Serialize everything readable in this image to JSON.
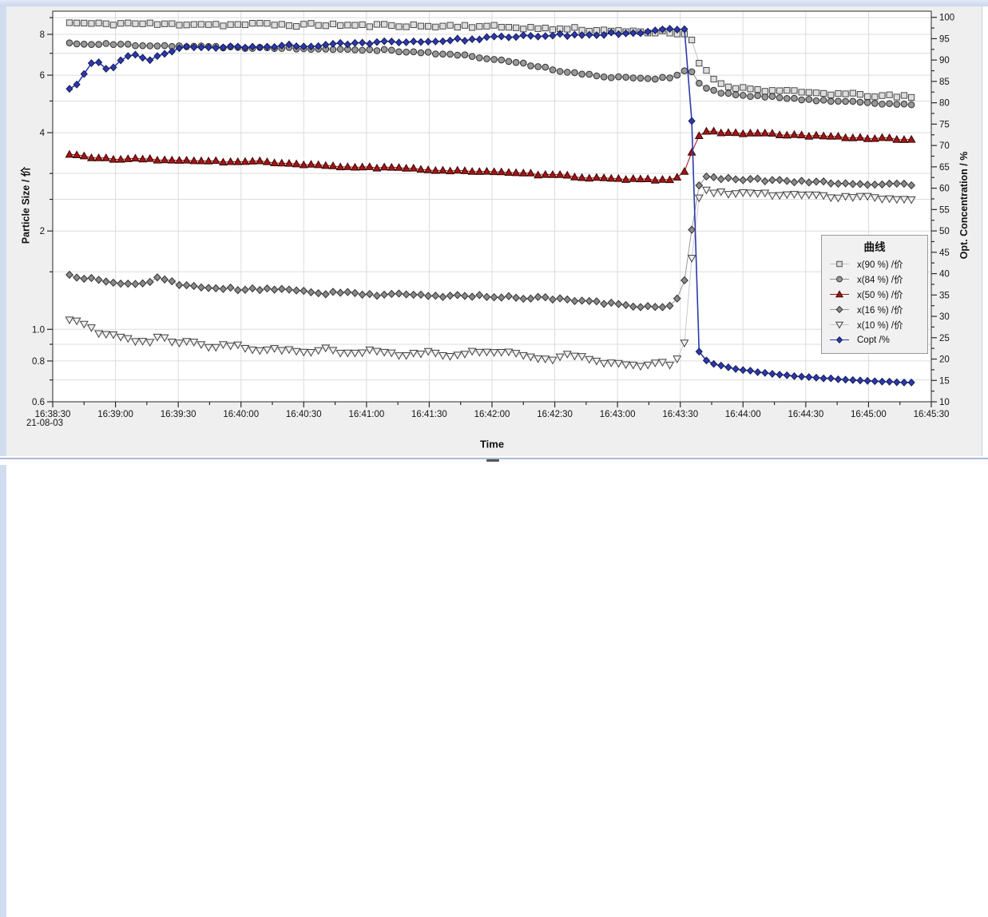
{
  "window": {
    "background": "#d2dcf0",
    "panel_background": "#efefef",
    "divider_color": "#a9b9da"
  },
  "chart_data": {
    "type": "line",
    "title": "",
    "xlabel": "Time",
    "ylabel_left": "Particle Size / 价",
    "ylabel_right": "Opt. Concentration / %",
    "date_label": "21-08-03",
    "grid": {
      "on": true,
      "color": "#dcdcdc"
    },
    "x_axis": {
      "range_s": [
        0,
        420
      ],
      "major_interval_s": 30,
      "minor_interval_s": 15,
      "tick_labels": [
        "16:38:30",
        "16:39:00",
        "16:39:30",
        "16:40:00",
        "16:40:30",
        "16:41:00",
        "16:41:30",
        "16:42:00",
        "16:42:30",
        "16:43:00",
        "16:43:30",
        "16:44:00",
        "16:44:30",
        "16:45:00",
        "16:45:30"
      ]
    },
    "left_axis": {
      "scale": "log",
      "min": 0.6,
      "max": 9.42,
      "ticks": [
        0.6,
        0.7,
        0.8,
        0.9,
        1,
        1.5,
        2,
        2.5,
        3,
        4,
        5,
        6,
        7,
        8,
        9
      ],
      "labeled": [
        [
          0.6,
          "0.6"
        ],
        [
          0.8,
          "0.8"
        ],
        [
          1,
          "1.0"
        ],
        [
          2,
          "2"
        ],
        [
          4,
          "4"
        ],
        [
          6,
          "6"
        ],
        [
          8,
          "8"
        ]
      ]
    },
    "right_axis": {
      "scale": "linear",
      "min": 10,
      "max": 100,
      "major_step": 5,
      "minor_step": 2.5
    },
    "legend": {
      "title": "曲线",
      "position": "right-middle",
      "entries": [
        "x(90 %) /价",
        "x(84 %) /价",
        "x(50 %) /价",
        "x(16 %) /价",
        "x(10 %) /价",
        "Copt /%"
      ]
    },
    "sample_interval_s": 3.5,
    "t_range": [
      8,
      412
    ],
    "series": [
      {
        "name": "x(90 %) /价",
        "axis": "left",
        "marker": "square",
        "fill": "#dedede",
        "stroke": "#4a4a4a",
        "line": "#bfbfbf",
        "line_width": 1,
        "jitter": 0.011,
        "seed": 11,
        "anchors": [
          [
            8,
            8.68
          ],
          [
            22,
            8.6
          ],
          [
            36,
            8.65
          ],
          [
            52,
            8.58
          ],
          [
            68,
            8.62
          ],
          [
            84,
            8.55
          ],
          [
            100,
            8.6
          ],
          [
            116,
            8.54
          ],
          [
            132,
            8.57
          ],
          [
            148,
            8.5
          ],
          [
            164,
            8.54
          ],
          [
            180,
            8.46
          ],
          [
            196,
            8.5
          ],
          [
            210,
            8.44
          ],
          [
            224,
            8.4
          ],
          [
            238,
            8.3
          ],
          [
            250,
            8.34
          ],
          [
            260,
            8.2
          ],
          [
            269,
            8.27
          ],
          [
            277,
            8.12
          ],
          [
            285,
            8.05
          ],
          [
            291,
            8.13
          ],
          [
            297,
            8.02
          ],
          [
            303,
            8.06
          ],
          [
            305,
            7.9
          ],
          [
            307,
            7.05
          ],
          [
            309,
            6.6
          ],
          [
            312,
            6.2
          ],
          [
            315,
            5.92
          ],
          [
            319,
            5.68
          ],
          [
            324,
            5.54
          ],
          [
            332,
            5.45
          ],
          [
            344,
            5.38
          ],
          [
            358,
            5.31
          ],
          [
            374,
            5.26
          ],
          [
            390,
            5.2
          ],
          [
            403,
            5.16
          ],
          [
            412,
            5.14
          ]
        ]
      },
      {
        "name": "x(84 %) /价",
        "axis": "left",
        "marker": "circle",
        "fill": "#999999",
        "stroke": "#303030",
        "line": "#8f8f8f",
        "line_width": 1,
        "jitter": 0.007,
        "seed": 22,
        "anchors": [
          [
            8,
            7.52
          ],
          [
            24,
            7.46
          ],
          [
            42,
            7.43
          ],
          [
            60,
            7.37
          ],
          [
            78,
            7.32
          ],
          [
            96,
            7.29
          ],
          [
            114,
            7.26
          ],
          [
            132,
            7.23
          ],
          [
            150,
            7.2
          ],
          [
            163,
            7.14
          ],
          [
            176,
            7.05
          ],
          [
            189,
            6.95
          ],
          [
            201,
            6.85
          ],
          [
            213,
            6.68
          ],
          [
            225,
            6.5
          ],
          [
            237,
            6.3
          ],
          [
            248,
            6.1
          ],
          [
            258,
            5.99
          ],
          [
            268,
            5.93
          ],
          [
            279,
            5.89
          ],
          [
            289,
            5.86
          ],
          [
            296,
            5.92
          ],
          [
            300,
            6.05
          ],
          [
            303,
            6.3
          ],
          [
            305,
            6.18
          ],
          [
            307,
            5.88
          ],
          [
            310,
            5.58
          ],
          [
            314,
            5.4
          ],
          [
            320,
            5.29
          ],
          [
            330,
            5.2
          ],
          [
            344,
            5.13
          ],
          [
            358,
            5.07
          ],
          [
            374,
            5.0
          ],
          [
            392,
            4.94
          ],
          [
            404,
            4.9
          ],
          [
            412,
            4.87
          ]
        ]
      },
      {
        "name": "x(50 %) /价",
        "axis": "left",
        "marker": "triangle-up",
        "fill": "#a31515",
        "stroke": "#3c0606",
        "line": "#9b1515",
        "line_width": 1,
        "jitter": 0.006,
        "seed": 33,
        "anchors": [
          [
            8,
            3.43
          ],
          [
            20,
            3.36
          ],
          [
            32,
            3.31
          ],
          [
            44,
            3.33
          ],
          [
            56,
            3.28
          ],
          [
            70,
            3.3
          ],
          [
            84,
            3.25
          ],
          [
            98,
            3.27
          ],
          [
            112,
            3.21
          ],
          [
            126,
            3.18
          ],
          [
            140,
            3.15
          ],
          [
            154,
            3.13
          ],
          [
            168,
            3.11
          ],
          [
            182,
            3.08
          ],
          [
            196,
            3.06
          ],
          [
            210,
            3.03
          ],
          [
            224,
            3.0
          ],
          [
            238,
            2.97
          ],
          [
            250,
            2.94
          ],
          [
            262,
            2.9
          ],
          [
            274,
            2.88
          ],
          [
            288,
            2.87
          ],
          [
            297,
            2.89
          ],
          [
            301,
            2.97
          ],
          [
            303,
            3.12
          ],
          [
            305,
            3.4
          ],
          [
            307,
            3.68
          ],
          [
            309,
            3.92
          ],
          [
            312,
            4.04
          ],
          [
            318,
            4.02
          ],
          [
            330,
            3.99
          ],
          [
            344,
            3.96
          ],
          [
            358,
            3.92
          ],
          [
            373,
            3.89
          ],
          [
            388,
            3.86
          ],
          [
            402,
            3.83
          ],
          [
            412,
            3.82
          ]
        ]
      },
      {
        "name": "x(16 %) /价",
        "axis": "left",
        "marker": "diamond",
        "fill": "#8a8a8a",
        "stroke": "#303030",
        "line": "#9a9a9a",
        "line_width": 1,
        "jitter": 0.009,
        "seed": 44,
        "anchors": [
          [
            8,
            1.46
          ],
          [
            18,
            1.43
          ],
          [
            28,
            1.39
          ],
          [
            40,
            1.37
          ],
          [
            50,
            1.43
          ],
          [
            60,
            1.38
          ],
          [
            72,
            1.34
          ],
          [
            86,
            1.33
          ],
          [
            100,
            1.32
          ],
          [
            114,
            1.33
          ],
          [
            128,
            1.29
          ],
          [
            142,
            1.3
          ],
          [
            156,
            1.27
          ],
          [
            170,
            1.28
          ],
          [
            184,
            1.26
          ],
          [
            198,
            1.27
          ],
          [
            212,
            1.26
          ],
          [
            226,
            1.25
          ],
          [
            240,
            1.24
          ],
          [
            254,
            1.22
          ],
          [
            266,
            1.2
          ],
          [
            278,
            1.18
          ],
          [
            288,
            1.17
          ],
          [
            296,
            1.19
          ],
          [
            300,
            1.26
          ],
          [
            303,
            1.5
          ],
          [
            305,
            1.9
          ],
          [
            307,
            2.4
          ],
          [
            309,
            2.75
          ],
          [
            312,
            2.92
          ],
          [
            318,
            2.9
          ],
          [
            332,
            2.88
          ],
          [
            348,
            2.85
          ],
          [
            364,
            2.83
          ],
          [
            380,
            2.8
          ],
          [
            396,
            2.78
          ],
          [
            412,
            2.77
          ]
        ]
      },
      {
        "name": "x(10 %) /价",
        "axis": "left",
        "marker": "triangle-down",
        "fill": "#f2f2f2",
        "stroke": "#404040",
        "line": "#c9c9c9",
        "line_width": 1,
        "jitter": 0.011,
        "seed": 55,
        "anchors": [
          [
            8,
            1.07
          ],
          [
            14,
            1.04
          ],
          [
            22,
            0.98
          ],
          [
            30,
            0.96
          ],
          [
            38,
            0.93
          ],
          [
            46,
            0.91
          ],
          [
            52,
            0.97
          ],
          [
            58,
            0.9
          ],
          [
            66,
            0.93
          ],
          [
            76,
            0.88
          ],
          [
            86,
            0.9
          ],
          [
            96,
            0.86
          ],
          [
            106,
            0.88
          ],
          [
            118,
            0.85
          ],
          [
            130,
            0.87
          ],
          [
            142,
            0.84
          ],
          [
            154,
            0.86
          ],
          [
            166,
            0.83
          ],
          [
            178,
            0.85
          ],
          [
            190,
            0.83
          ],
          [
            202,
            0.85
          ],
          [
            214,
            0.86
          ],
          [
            226,
            0.83
          ],
          [
            238,
            0.81
          ],
          [
            248,
            0.84
          ],
          [
            258,
            0.8
          ],
          [
            268,
            0.79
          ],
          [
            276,
            0.77
          ],
          [
            284,
            0.78
          ],
          [
            290,
            0.8
          ],
          [
            295,
            0.78
          ],
          [
            299,
            0.81
          ],
          [
            302,
            0.9
          ],
          [
            304,
            1.25
          ],
          [
            306,
            1.8
          ],
          [
            308,
            2.35
          ],
          [
            310,
            2.66
          ],
          [
            316,
            2.63
          ],
          [
            328,
            2.61
          ],
          [
            344,
            2.59
          ],
          [
            360,
            2.57
          ],
          [
            376,
            2.55
          ],
          [
            392,
            2.53
          ],
          [
            412,
            2.52
          ]
        ]
      },
      {
        "name": "Copt /%",
        "axis": "right",
        "marker": "diamond-small",
        "fill": "#2c39ad",
        "stroke": "#131a52",
        "line": "#2c39ad",
        "line_width": 1.6,
        "jitter": 0.004,
        "seed": 66,
        "anchors": [
          [
            8,
            83.5
          ],
          [
            11,
            84.3
          ],
          [
            14,
            86.2
          ],
          [
            17,
            88.4
          ],
          [
            20,
            89.8
          ],
          [
            23,
            89.2
          ],
          [
            26,
            87.4
          ],
          [
            29,
            88.6
          ],
          [
            32,
            90.2
          ],
          [
            36,
            90.9
          ],
          [
            40,
            91.5
          ],
          [
            44,
            90.7
          ],
          [
            48,
            90.1
          ],
          [
            52,
            91.1
          ],
          [
            57,
            92.1
          ],
          [
            62,
            92.7
          ],
          [
            68,
            93.1
          ],
          [
            74,
            92.6
          ],
          [
            80,
            93.3
          ],
          [
            88,
            92.9
          ],
          [
            96,
            93.4
          ],
          [
            104,
            93.1
          ],
          [
            112,
            93.6
          ],
          [
            122,
            93.3
          ],
          [
            132,
            93.8
          ],
          [
            142,
            93.5
          ],
          [
            152,
            94.1
          ],
          [
            162,
            94.3
          ],
          [
            172,
            94.1
          ],
          [
            182,
            94.5
          ],
          [
            192,
            94.7
          ],
          [
            202,
            95.0
          ],
          [
            212,
            95.2
          ],
          [
            222,
            95.5
          ],
          [
            232,
            95.6
          ],
          [
            242,
            95.8
          ],
          [
            252,
            96.0
          ],
          [
            262,
            96.2
          ],
          [
            272,
            96.4
          ],
          [
            281,
            96.6
          ],
          [
            289,
            96.8
          ],
          [
            295,
            97.0
          ],
          [
            300,
            97.1
          ],
          [
            303,
            97.2
          ],
          [
            304.5,
            92.0
          ],
          [
            305.5,
            76.0
          ],
          [
            306.5,
            56.0
          ],
          [
            307.5,
            34.0
          ],
          [
            308.5,
            22.5
          ],
          [
            310,
            20.3
          ],
          [
            314,
            19.2
          ],
          [
            320,
            18.4
          ],
          [
            328,
            17.6
          ],
          [
            337,
            17.0
          ],
          [
            347,
            16.4
          ],
          [
            358,
            15.9
          ],
          [
            370,
            15.5
          ],
          [
            382,
            15.1
          ],
          [
            394,
            14.8
          ],
          [
            404,
            14.6
          ],
          [
            412,
            14.5
          ]
        ]
      }
    ]
  }
}
